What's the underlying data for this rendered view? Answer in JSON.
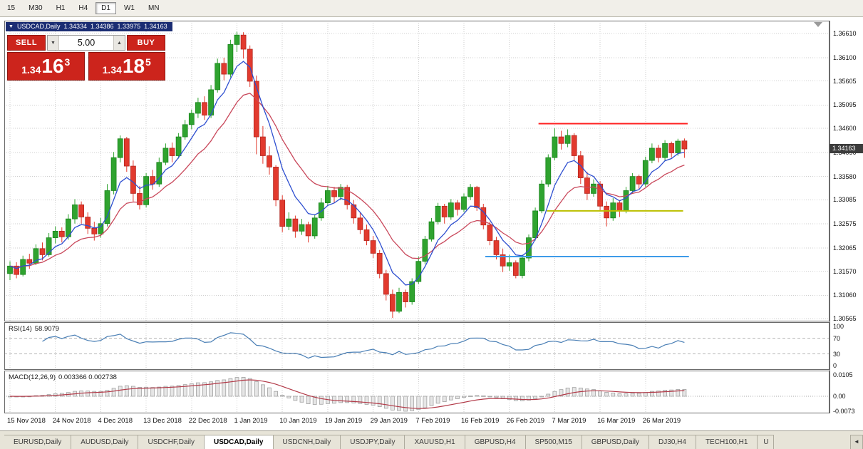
{
  "toolbar": {
    "timeframes": [
      "15",
      "M30",
      "H1",
      "H4",
      "D1",
      "W1",
      "MN"
    ],
    "active": "D1"
  },
  "chart": {
    "header": {
      "symbol_period": "USDCAD,Daily",
      "open": "1.34334",
      "high": "1.34386",
      "low": "1.33975",
      "close": "1.34163"
    }
  },
  "trade_panel": {
    "sell_label": "SELL",
    "buy_label": "BUY",
    "volume": "5.00",
    "sell_price": {
      "prefix": "1.34",
      "big": "16",
      "sup": "3"
    },
    "buy_price": {
      "prefix": "1.34",
      "big": "18",
      "sup": "5"
    }
  },
  "price_scale": {
    "labels": [
      "1.36610",
      "1.36100",
      "1.35605",
      "1.35095",
      "1.34600",
      "1.34090",
      "1.33580",
      "1.33085",
      "1.32575",
      "1.32065",
      "1.31570",
      "1.31060",
      "1.30565"
    ],
    "current_price": "1.34163"
  },
  "time_scale": {
    "labels": [
      {
        "text": "15 Nov 2018",
        "bar": 0
      },
      {
        "text": "24 Nov 2018",
        "bar": 7
      },
      {
        "text": "4 Dec 2018",
        "bar": 14
      },
      {
        "text": "13 Dec 2018",
        "bar": 21
      },
      {
        "text": "22 Dec 2018",
        "bar": 28
      },
      {
        "text": "1 Jan 2019",
        "bar": 35
      },
      {
        "text": "10 Jan 2019",
        "bar": 42
      },
      {
        "text": "19 Jan 2019",
        "bar": 49
      },
      {
        "text": "29 Jan 2019",
        "bar": 56
      },
      {
        "text": "7 Feb 2019",
        "bar": 63
      },
      {
        "text": "16 Feb 2019",
        "bar": 70
      },
      {
        "text": "26 Feb 2019",
        "bar": 77
      },
      {
        "text": "7 Mar 2019",
        "bar": 84
      },
      {
        "text": "16 Mar 2019",
        "bar": 91
      },
      {
        "text": "26 Mar 2019",
        "bar": 98
      }
    ]
  },
  "indicators": {
    "rsi": {
      "label": "RSI(14)",
      "value": "58.9079",
      "scale": [
        "100",
        "70",
        "30",
        "0"
      ]
    },
    "macd": {
      "label": "MACD(12,26,9)",
      "values": "0.003366 0.002738",
      "scale": [
        "0.0105",
        "0.00",
        "-0.0073"
      ]
    }
  },
  "tabs": {
    "active": "USDCAD,Daily",
    "items": [
      {
        "label": "EURUSD,Daily"
      },
      {
        "label": "AUDUSD,Daily"
      },
      {
        "label": "USDCHF,Daily"
      },
      {
        "label": "USDCAD,Daily"
      },
      {
        "label": "USDCNH,Daily"
      },
      {
        "label": "USDJPY,Daily"
      },
      {
        "label": "XAUUSD,H1"
      },
      {
        "label": "GBPUSD,H4"
      },
      {
        "label": "SP500,M15"
      },
      {
        "label": "GBPUSD,Daily"
      },
      {
        "label": "DJ30,H4"
      },
      {
        "label": "TECH100,H1"
      },
      {
        "label": "U",
        "truncated": true
      }
    ]
  },
  "colors": {
    "bull": "#2fa32f",
    "bull_edge": "#17821a",
    "bear": "#e23a2e",
    "bear_edge": "#b0241c",
    "rsi_line": "#4a7fb5",
    "macd_hist_fill": "#e6e6e6",
    "macd_hist_edge": "#9c9c9c",
    "macd_signal": "#b23a48",
    "grid": "#cfcfcf",
    "frame": "#6b6b6b",
    "accent_red": "#cc241c",
    "badge_bg": "#3c3c3c"
  },
  "chart_data": {
    "type": "candlestick",
    "symbol": "USDCAD",
    "period": "Daily",
    "current_ohlc": {
      "open": 1.34334,
      "high": 1.34386,
      "low": 1.33975,
      "close": 1.34163
    },
    "ylim": [
      1.30505,
      1.36885
    ],
    "candles": [
      [
        1.3152,
        1.3178,
        1.3138,
        1.3168
      ],
      [
        1.3168,
        1.3176,
        1.3142,
        1.315
      ],
      [
        1.315,
        1.319,
        1.3146,
        1.3182
      ],
      [
        1.3182,
        1.3194,
        1.3162,
        1.3174
      ],
      [
        1.3174,
        1.3214,
        1.317,
        1.3205
      ],
      [
        1.3205,
        1.3218,
        1.318,
        1.3192
      ],
      [
        1.3192,
        1.3238,
        1.3188,
        1.3228
      ],
      [
        1.3228,
        1.3252,
        1.3216,
        1.3242
      ],
      [
        1.3242,
        1.325,
        1.3218,
        1.323
      ],
      [
        1.323,
        1.3278,
        1.3224,
        1.3268
      ],
      [
        1.3268,
        1.331,
        1.3258,
        1.3298
      ],
      [
        1.3298,
        1.3305,
        1.3258,
        1.3272
      ],
      [
        1.3272,
        1.3282,
        1.3236,
        1.3248
      ],
      [
        1.3248,
        1.3262,
        1.3222,
        1.3236
      ],
      [
        1.3236,
        1.327,
        1.3228,
        1.3258
      ],
      [
        1.3258,
        1.3342,
        1.3252,
        1.3328
      ],
      [
        1.3328,
        1.341,
        1.332,
        1.3398
      ],
      [
        1.3398,
        1.3445,
        1.3388,
        1.3438
      ],
      [
        1.3438,
        1.3442,
        1.3368,
        1.338
      ],
      [
        1.338,
        1.3392,
        1.3305,
        1.3322
      ],
      [
        1.3322,
        1.3338,
        1.3288,
        1.3298
      ],
      [
        1.3298,
        1.3365,
        1.3292,
        1.3358
      ],
      [
        1.3358,
        1.3372,
        1.333,
        1.3342
      ],
      [
        1.3342,
        1.3398,
        1.3336,
        1.3388
      ],
      [
        1.3388,
        1.3428,
        1.3382,
        1.3418
      ],
      [
        1.3418,
        1.343,
        1.3388,
        1.3402
      ],
      [
        1.3402,
        1.345,
        1.3396,
        1.3442
      ],
      [
        1.3442,
        1.3478,
        1.3436,
        1.3468
      ],
      [
        1.3468,
        1.35,
        1.3458,
        1.3492
      ],
      [
        1.3492,
        1.3525,
        1.3482,
        1.3515
      ],
      [
        1.3515,
        1.3528,
        1.3478,
        1.3488
      ],
      [
        1.3488,
        1.3552,
        1.3482,
        1.3542
      ],
      [
        1.3542,
        1.3608,
        1.3536,
        1.3598
      ],
      [
        1.3598,
        1.361,
        1.3562,
        1.3575
      ],
      [
        1.3575,
        1.3648,
        1.3568,
        1.3638
      ],
      [
        1.3638,
        1.3665,
        1.3622,
        1.3658
      ],
      [
        1.3658,
        1.3664,
        1.3608,
        1.3628
      ],
      [
        1.3628,
        1.3636,
        1.3548,
        1.356
      ],
      [
        1.356,
        1.3572,
        1.3405,
        1.3442
      ],
      [
        1.3442,
        1.3465,
        1.3385,
        1.3402
      ],
      [
        1.3402,
        1.3422,
        1.3362,
        1.3378
      ],
      [
        1.3378,
        1.3382,
        1.3295,
        1.3308
      ],
      [
        1.3308,
        1.3318,
        1.324,
        1.3252
      ],
      [
        1.3252,
        1.3282,
        1.3244,
        1.3268
      ],
      [
        1.3268,
        1.3275,
        1.3228,
        1.3242
      ],
      [
        1.3242,
        1.3268,
        1.3234,
        1.3256
      ],
      [
        1.3256,
        1.3262,
        1.3218,
        1.3232
      ],
      [
        1.3232,
        1.3278,
        1.3226,
        1.327
      ],
      [
        1.327,
        1.3312,
        1.3264,
        1.3302
      ],
      [
        1.3302,
        1.3338,
        1.3296,
        1.3328
      ],
      [
        1.3328,
        1.3336,
        1.3302,
        1.3315
      ],
      [
        1.3315,
        1.3342,
        1.3308,
        1.3335
      ],
      [
        1.3335,
        1.334,
        1.3288,
        1.3298
      ],
      [
        1.3298,
        1.3308,
        1.3258,
        1.327
      ],
      [
        1.327,
        1.3282,
        1.3236,
        1.3245
      ],
      [
        1.3245,
        1.3256,
        1.3212,
        1.3222
      ],
      [
        1.3222,
        1.3232,
        1.3185,
        1.3195
      ],
      [
        1.3195,
        1.3202,
        1.3142,
        1.3152
      ],
      [
        1.3152,
        1.316,
        1.3095,
        1.3108
      ],
      [
        1.3108,
        1.3118,
        1.3058,
        1.3072
      ],
      [
        1.3072,
        1.3122,
        1.3068,
        1.3112
      ],
      [
        1.3112,
        1.3118,
        1.308,
        1.3092
      ],
      [
        1.3092,
        1.3142,
        1.3086,
        1.3135
      ],
      [
        1.3135,
        1.3188,
        1.313,
        1.3178
      ],
      [
        1.3178,
        1.3232,
        1.3172,
        1.3225
      ],
      [
        1.3225,
        1.327,
        1.322,
        1.3262
      ],
      [
        1.3262,
        1.3302,
        1.3256,
        1.3295
      ],
      [
        1.3295,
        1.33,
        1.3258,
        1.3272
      ],
      [
        1.3272,
        1.331,
        1.3266,
        1.3302
      ],
      [
        1.3302,
        1.3308,
        1.3275,
        1.3288
      ],
      [
        1.3288,
        1.3322,
        1.3282,
        1.3315
      ],
      [
        1.3315,
        1.3342,
        1.3308,
        1.3335
      ],
      [
        1.3335,
        1.3338,
        1.3285,
        1.3292
      ],
      [
        1.3292,
        1.33,
        1.3246,
        1.3255
      ],
      [
        1.3255,
        1.3262,
        1.3212,
        1.3222
      ],
      [
        1.3222,
        1.323,
        1.3182,
        1.3192
      ],
      [
        1.3192,
        1.3205,
        1.3155,
        1.3168
      ],
      [
        1.3168,
        1.3192,
        1.3158,
        1.3175
      ],
      [
        1.3175,
        1.318,
        1.3142,
        1.3148
      ],
      [
        1.3148,
        1.3192,
        1.3142,
        1.3185
      ],
      [
        1.3185,
        1.3235,
        1.3178,
        1.3228
      ],
      [
        1.3228,
        1.3292,
        1.3222,
        1.3285
      ],
      [
        1.3285,
        1.335,
        1.328,
        1.3342
      ],
      [
        1.3342,
        1.3405,
        1.3336,
        1.3398
      ],
      [
        1.3398,
        1.346,
        1.3392,
        1.3442
      ],
      [
        1.3442,
        1.3455,
        1.3415,
        1.3428
      ],
      [
        1.3428,
        1.3458,
        1.342,
        1.3445
      ],
      [
        1.3445,
        1.345,
        1.3392,
        1.3402
      ],
      [
        1.3402,
        1.3412,
        1.3342,
        1.3355
      ],
      [
        1.3355,
        1.3368,
        1.3308,
        1.3322
      ],
      [
        1.3322,
        1.3352,
        1.3315,
        1.3342
      ],
      [
        1.3342,
        1.3348,
        1.3285,
        1.3295
      ],
      [
        1.3295,
        1.3305,
        1.3252,
        1.327
      ],
      [
        1.327,
        1.3312,
        1.3264,
        1.3302
      ],
      [
        1.3302,
        1.3308,
        1.3272,
        1.3285
      ],
      [
        1.3285,
        1.3336,
        1.328,
        1.3328
      ],
      [
        1.3328,
        1.3365,
        1.3322,
        1.3358
      ],
      [
        1.3358,
        1.3362,
        1.3332,
        1.3342
      ],
      [
        1.3342,
        1.34,
        1.3336,
        1.3392
      ],
      [
        1.3392,
        1.3428,
        1.3386,
        1.3418
      ],
      [
        1.3418,
        1.3425,
        1.3388,
        1.3398
      ],
      [
        1.3398,
        1.3435,
        1.3392,
        1.3428
      ],
      [
        1.3428,
        1.3432,
        1.3398,
        1.3408
      ],
      [
        1.3408,
        1.3438,
        1.3402,
        1.3433
      ],
      [
        1.34334,
        1.34386,
        1.33975,
        1.34163
      ]
    ],
    "moving_averages": [
      {
        "name": "fast",
        "method": "ema",
        "period": 6,
        "color": "#2e4fd0"
      },
      {
        "name": "slow",
        "method": "ema",
        "period": 14,
        "color": "#c9485b"
      }
    ],
    "hlines": [
      {
        "name": "resistance-line-red",
        "price": 1.347,
        "color": "#ff1f1f",
        "from_bar": 81.5,
        "to_bar": 104.5
      },
      {
        "name": "support-line-yellow",
        "price": 1.3285,
        "color": "#bcbf00",
        "from_bar": 82.8,
        "to_bar": 103.8
      },
      {
        "name": "support-line-blue",
        "price": 1.3188,
        "color": "#3d9be9",
        "from_bar": 73.3,
        "to_bar": 104.7
      }
    ],
    "rsi": {
      "period": 14,
      "current": 58.9079,
      "levels": [
        70,
        30
      ],
      "range": [
        0,
        100
      ]
    },
    "macd": {
      "fast": 12,
      "slow": 26,
      "signal": 9,
      "current_main": 0.003366,
      "current_signal": 0.002738
    }
  }
}
